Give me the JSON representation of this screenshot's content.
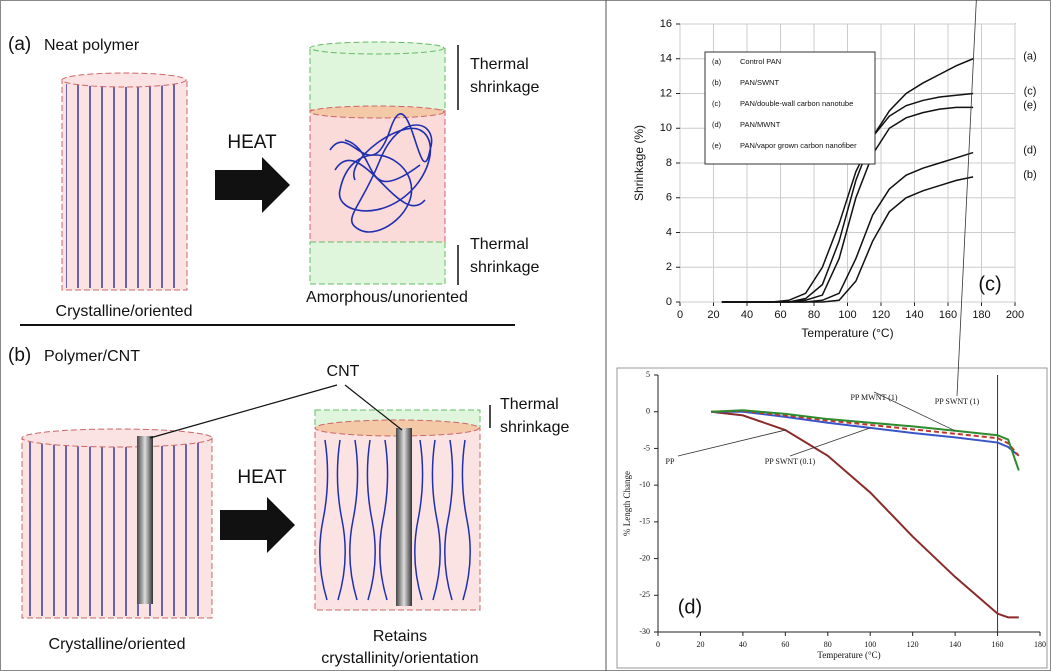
{
  "diagram": {
    "panel_a": {
      "letter": "(a)",
      "title": "Neat polymer",
      "heat": "HEAT",
      "shrink_top": [
        "Thermal",
        "shrinkage"
      ],
      "shrink_bottom": [
        "Thermal",
        "shrinkage"
      ],
      "left_caption": "Crystalline/oriented",
      "right_caption": "Amorphous/unoriented"
    },
    "panel_b": {
      "letter": "(b)",
      "title": "Polymer/CNT",
      "heat": "HEAT",
      "cnt": "CNT",
      "shrink_top": [
        "Thermal",
        "shrinkage"
      ],
      "left_caption": "Crystalline/oriented",
      "right_caption": [
        "Retains",
        "crystallinity/orientation"
      ]
    }
  },
  "chart_data": [
    {
      "type": "line",
      "label": "(c)",
      "xlabel": "Temperature (°C)",
      "ylabel": "Shrinkage (%)",
      "xlim": [
        0,
        200
      ],
      "xticks": [
        0,
        20,
        40,
        60,
        80,
        100,
        120,
        140,
        160,
        180,
        200
      ],
      "ylim": [
        0,
        16
      ],
      "yticks": [
        0,
        2,
        4,
        6,
        8,
        10,
        12,
        14,
        16
      ],
      "grid": true,
      "x": [
        25,
        40,
        55,
        65,
        75,
        85,
        95,
        105,
        115,
        125,
        135,
        145,
        155,
        165,
        175
      ],
      "series": [
        {
          "key": "(a)",
          "name": "Control PAN",
          "color": "#111111",
          "values": [
            0,
            0,
            0,
            0.1,
            0.5,
            2,
            4.5,
            7.5,
            9.5,
            11,
            12,
            12.6,
            13.1,
            13.6,
            14
          ]
        },
        {
          "key": "(b)",
          "name": "PAN/SWNT",
          "color": "#111111",
          "values": [
            0,
            0,
            0,
            0,
            0,
            0,
            0.1,
            1.2,
            3.5,
            5.2,
            6,
            6.4,
            6.7,
            7,
            7.2
          ]
        },
        {
          "key": "(c)",
          "name": "PAN/double-wall carbon nanotube",
          "color": "#111111",
          "values": [
            0,
            0,
            0,
            0,
            0.2,
            1,
            3.5,
            7,
            9.5,
            10.7,
            11.3,
            11.6,
            11.8,
            11.9,
            12
          ]
        },
        {
          "key": "(d)",
          "name": "PAN/MWNT",
          "color": "#111111",
          "values": [
            0,
            0,
            0,
            0,
            0,
            0.1,
            0.5,
            2.5,
            5,
            6.5,
            7.3,
            7.7,
            8,
            8.3,
            8.6
          ]
        },
        {
          "key": "(e)",
          "name": "PAN/vapor grown carbon nanofiber",
          "color": "#111111",
          "values": [
            0,
            0,
            0,
            0,
            0.1,
            0.4,
            2.5,
            6,
            8.5,
            10,
            10.6,
            10.9,
            11.1,
            11.2,
            11.2
          ]
        }
      ]
    },
    {
      "type": "line",
      "label": "(d)",
      "xlabel": "Temperature (°C)",
      "ylabel": "% Length Change",
      "xlim": [
        0,
        180
      ],
      "xticks": [
        0,
        20,
        40,
        60,
        80,
        100,
        120,
        140,
        160,
        180
      ],
      "ylim": [
        -30,
        5
      ],
      "yticks": [
        -30,
        -25,
        -20,
        -15,
        -10,
        -5,
        0,
        5
      ],
      "grid": false,
      "reference_x": 160,
      "x": [
        25,
        40,
        60,
        80,
        100,
        120,
        140,
        160,
        165,
        170
      ],
      "series": [
        {
          "name": "PP",
          "color": "#8b2a2a",
          "values": [
            0,
            -0.5,
            -2.5,
            -6,
            -11,
            -17,
            -22.5,
            -27.5,
            -28,
            -28
          ]
        },
        {
          "name": "PP SWNT (0.1)",
          "color": "#3a55c8",
          "values": [
            0,
            0,
            -0.7,
            -1.5,
            -2.2,
            -2.9,
            -3.5,
            -4.2,
            -4.8,
            -6
          ]
        },
        {
          "name": "PP SWNT (1)",
          "color": "#c0392b",
          "values": [
            0,
            0.1,
            -0.5,
            -1.2,
            -1.8,
            -2.4,
            -3,
            -3.6,
            -4.3,
            -6
          ]
        },
        {
          "name": "PP MWNT (1)",
          "color": "#2e8b2e",
          "values": [
            0,
            0.2,
            -0.3,
            -1,
            -1.5,
            -2,
            -2.6,
            -3.2,
            -3.8,
            -8
          ]
        }
      ]
    }
  ]
}
